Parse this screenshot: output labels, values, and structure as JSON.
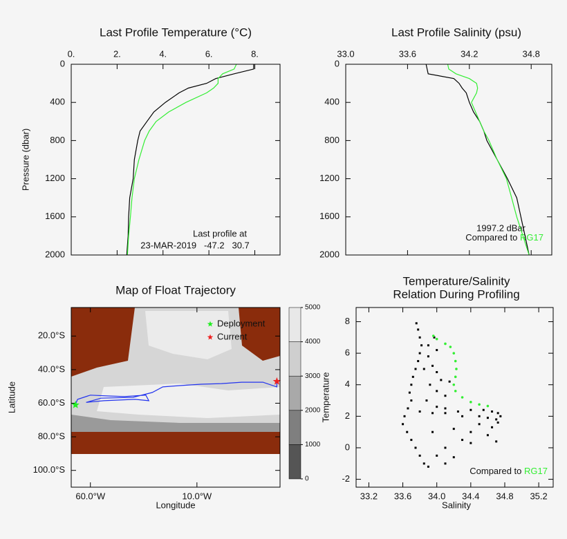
{
  "chart_data": [
    {
      "type": "line",
      "title": "Last Profile Temperature (°C)",
      "y_label": "Pressure (dbar)",
      "y_inverted": true,
      "xlim": [
        0,
        9.1
      ],
      "xticks": [
        {
          "value": 0,
          "label": "0."
        },
        {
          "value": 2,
          "label": "2."
        },
        {
          "value": 4,
          "label": "4."
        },
        {
          "value": 6,
          "label": "6."
        },
        {
          "value": 8,
          "label": "8."
        }
      ],
      "ylim": [
        0,
        2000
      ],
      "yticks": [
        0,
        400,
        800,
        1200,
        1600,
        2000
      ],
      "y": [
        0,
        50,
        100,
        150,
        200,
        250,
        300,
        400,
        500,
        600,
        700,
        800,
        1000,
        1200,
        1400,
        1600,
        1800,
        2000
      ],
      "series": [
        {
          "color": "#000000",
          "values": [
            7.95,
            7.95,
            7.1,
            6.3,
            5.9,
            5.1,
            4.7,
            4.1,
            3.6,
            3.3,
            3.0,
            2.9,
            2.75,
            2.7,
            2.55,
            2.5,
            2.48,
            2.42
          ]
        },
        {
          "color": "#33ee33",
          "values": [
            7.2,
            7.1,
            6.6,
            6.4,
            6.4,
            6.2,
            5.9,
            5.0,
            4.25,
            3.7,
            3.4,
            3.2,
            2.95,
            2.75,
            2.65,
            2.58,
            2.5,
            2.45
          ]
        }
      ],
      "annotations": [
        "Last profile at",
        "23-MAR-2019   -47.2   30.7"
      ]
    },
    {
      "type": "line",
      "title": "Last Profile Salinity (psu)",
      "y_inverted": true,
      "xlim": [
        33.0,
        35.0
      ],
      "xticks": [
        {
          "value": 33,
          "label": "33.0"
        },
        33.6,
        34.2,
        34.8
      ],
      "ylim": [
        0,
        2000
      ],
      "yticks": [
        0,
        400,
        800,
        1200,
        1600,
        2000
      ],
      "y": [
        0,
        50,
        100,
        150,
        200,
        250,
        300,
        400,
        500,
        600,
        700,
        800,
        1000,
        1200,
        1400,
        1600,
        1800,
        2000
      ],
      "series": [
        {
          "color": "#000000",
          "values": [
            33.78,
            33.79,
            33.8,
            34.05,
            34.1,
            34.13,
            34.17,
            34.2,
            34.24,
            34.3,
            34.34,
            34.37,
            34.47,
            34.57,
            34.66,
            34.7,
            34.74,
            34.78
          ]
        },
        {
          "name": "RG17",
          "color": "#33ee33",
          "values": [
            33.99,
            34.0,
            34.07,
            34.2,
            34.27,
            34.28,
            34.27,
            34.22,
            34.26,
            34.3,
            34.34,
            34.39,
            34.47,
            34.56,
            34.61,
            34.66,
            34.72,
            34.78
          ]
        }
      ],
      "annotations": [
        "1997.2 dBar",
        "Compared to"
      ]
    },
    {
      "type": "map",
      "title": "Map of Float Trajectory",
      "x_label": "Longitude",
      "y_label": "Latitude",
      "xlim": [
        -69,
        29
      ],
      "xticks": [
        {
          "value": -60,
          "label": "60.0°W"
        },
        {
          "value": -10,
          "label": "10.0°W"
        }
      ],
      "ylim": [
        -110,
        -3
      ],
      "yticks": [
        {
          "value": -20,
          "label": "20.0°S"
        },
        {
          "value": -40,
          "label": "40.0°S"
        },
        {
          "value": -60,
          "label": "60.0°S"
        },
        {
          "value": -80,
          "label": "80.0°S"
        },
        {
          "value": -100,
          "label": "100.0°S"
        }
      ],
      "series": [
        {
          "color": "#2233ee",
          "x": [
            -67.4,
            -66,
            -60,
            -50.5,
            -44,
            -34,
            -32.6,
            -39,
            -53.7,
            -62,
            -55,
            -40,
            -31,
            -26,
            -18,
            -8,
            1.5,
            11,
            21,
            27.5,
            27.5
          ],
          "values": [
            -61.8,
            -57.7,
            -55.2,
            -55.7,
            -56,
            -55.2,
            -58.5,
            -57.7,
            -58.5,
            -59.5,
            -57,
            -56.5,
            -53.6,
            -50.3,
            -49.5,
            -48.7,
            -48.3,
            -47.5,
            -47.5,
            -50.3,
            -47
          ]
        },
        {
          "name": "Deployment",
          "color": "#22ee22",
          "x": [
            -67
          ],
          "values": [
            -61
          ]
        },
        {
          "name": "Current",
          "color": "#ee2222",
          "x": [
            27.5
          ],
          "values": [
            -47
          ]
        }
      ],
      "colorbar": {
        "ticks": [
          0,
          1000,
          2000,
          3000,
          4000,
          5000
        ],
        "colors": [
          "#555555",
          "#7f7f7f",
          "#a9a9a9",
          "#cfcfcf",
          "#e8e8e8"
        ]
      }
    },
    {
      "type": "scatter",
      "title": [
        "Temperature/Salinity",
        "Relation During Profiling"
      ],
      "x_label": "Salinity",
      "y_label": "Temperature",
      "xlim": [
        33.05,
        35.37
      ],
      "xticks": [
        33.2,
        33.6,
        {
          "value": 34,
          "label": "34.0"
        },
        34.4,
        34.8,
        35.2
      ],
      "ylim": [
        -2.5,
        8.9
      ],
      "yticks": [
        -2,
        0,
        2,
        4,
        6,
        8
      ],
      "series": [
        {
          "color": "#000000",
          "x": [
            33.76,
            33.78,
            33.8,
            33.82,
            33.8,
            33.78,
            33.75,
            33.72,
            33.7,
            33.68,
            33.7,
            33.66,
            33.62,
            33.6,
            33.65,
            33.7,
            33.75,
            33.8,
            33.85,
            33.9,
            33.9,
            33.95,
            34.0,
            34.05,
            33.92,
            34.0,
            34.1,
            33.88,
            34.15,
            33.85,
            33.8,
            33.95,
            34.1,
            34.25,
            34.4,
            34.55,
            34.65,
            34.72,
            34.75,
            34.7,
            34.6,
            34.5,
            34.3,
            34.1,
            34.0,
            34.2,
            34.4,
            34.6,
            34.7,
            34.5,
            34.3,
            34.1,
            34.0,
            33.95,
            34.1,
            34.2,
            34.4,
            34.65,
            34.72,
            33.97,
            34.0,
            33.9
          ],
          "values": [
            7.9,
            7.5,
            7.0,
            6.5,
            6.0,
            5.5,
            5.0,
            4.5,
            4.0,
            3.5,
            3.0,
            2.5,
            2.0,
            1.5,
            1.0,
            0.5,
            0.0,
            -0.5,
            -1.0,
            -1.2,
            5.8,
            5.2,
            4.8,
            4.3,
            4.0,
            3.6,
            3.3,
            3.0,
            4.2,
            5.0,
            2.3,
            2.2,
            2.2,
            2.3,
            2.4,
            2.4,
            2.3,
            2.2,
            2.0,
            1.8,
            1.9,
            2.0,
            2.0,
            2.5,
            2.6,
            1.2,
            1.0,
            0.8,
            0.4,
            1.5,
            0.5,
            0.0,
            -0.5,
            1.0,
            -1.0,
            -0.6,
            0.3,
            1.3,
            1.6,
            7.0,
            6.2,
            6.5
          ]
        },
        {
          "name": "RG17",
          "color": "#33ee33",
          "x": [
            33.96,
            34.0,
            34.1,
            34.16,
            34.2,
            34.22,
            34.23,
            34.22,
            34.2,
            34.22,
            34.3,
            34.4,
            34.5,
            34.6
          ],
          "values": [
            7.1,
            6.9,
            6.6,
            6.4,
            6.0,
            5.5,
            5.0,
            4.5,
            4.0,
            3.6,
            3.2,
            2.9,
            2.75,
            2.65
          ]
        }
      ],
      "annotations": [
        "Compared to"
      ]
    }
  ]
}
